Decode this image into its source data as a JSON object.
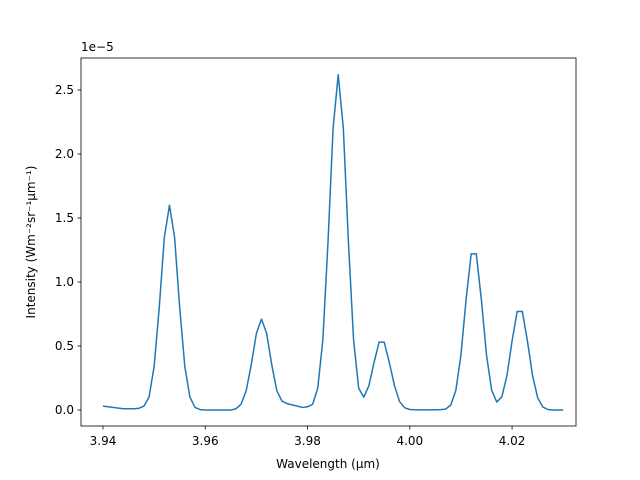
{
  "chart_data": {
    "type": "line",
    "xlabel": "Wavelength (μm)",
    "ylabel": "Intensity (Wm⁻²sr⁻¹μm⁻¹)",
    "y_offset_label": "1e−5",
    "color": "#1f77b4",
    "x": [
      3.94,
      3.941,
      3.942,
      3.943,
      3.944,
      3.945,
      3.946,
      3.947,
      3.948,
      3.949,
      3.95,
      3.951,
      3.952,
      3.953,
      3.954,
      3.955,
      3.956,
      3.957,
      3.958,
      3.959,
      3.96,
      3.961,
      3.962,
      3.963,
      3.964,
      3.965,
      3.966,
      3.967,
      3.968,
      3.969,
      3.97,
      3.971,
      3.972,
      3.973,
      3.974,
      3.975,
      3.976,
      3.977,
      3.978,
      3.979,
      3.98,
      3.981,
      3.982,
      3.983,
      3.984,
      3.985,
      3.986,
      3.987,
      3.988,
      3.989,
      3.99,
      3.991,
      3.992,
      3.993,
      3.994,
      3.995,
      3.996,
      3.997,
      3.998,
      3.999,
      4.0,
      4.001,
      4.002,
      4.003,
      4.004,
      4.005,
      4.006,
      4.007,
      4.008,
      4.009,
      4.01,
      4.011,
      4.012,
      4.013,
      4.014,
      4.015,
      4.016,
      4.017,
      4.018,
      4.019,
      4.02,
      4.021,
      4.022,
      4.023,
      4.024,
      4.025,
      4.026,
      4.027,
      4.028,
      4.029,
      4.03
    ],
    "values": [
      0.03,
      0.025,
      0.02,
      0.015,
      0.01,
      0.01,
      0.01,
      0.013,
      0.03,
      0.1,
      0.34,
      0.8,
      1.35,
      1.6,
      1.35,
      0.8,
      0.34,
      0.1,
      0.02,
      0.003,
      0,
      0,
      0,
      0,
      0,
      0,
      0.009,
      0.045,
      0.15,
      0.355,
      0.6,
      0.71,
      0.6,
      0.355,
      0.15,
      0.07,
      0.05,
      0.04,
      0.03,
      0.02,
      0.025,
      0.045,
      0.17,
      0.55,
      1.31,
      2.2,
      2.62,
      2.2,
      1.31,
      0.55,
      0.17,
      0.1,
      0.19,
      0.37,
      0.53,
      0.53,
      0.37,
      0.19,
      0.066,
      0.017,
      0.004,
      0.002,
      0.001,
      0.001,
      0.001,
      0.002,
      0.003,
      0.007,
      0.038,
      0.152,
      0.43,
      0.86,
      1.22,
      1.22,
      0.86,
      0.43,
      0.156,
      0.062,
      0.103,
      0.27,
      0.54,
      0.77,
      0.77,
      0.54,
      0.27,
      0.096,
      0.024,
      0.004,
      0,
      0,
      0
    ],
    "xlim": [
      3.9357,
      4.0325
    ],
    "ylim": [
      -0.125,
      2.75
    ],
    "xticks": [
      3.94,
      3.96,
      3.98,
      {
        "value": 4.0,
        "label": "4.00"
      },
      4.02
    ],
    "yticks": [
      {
        "value": 0,
        "label": "0.0"
      },
      0.5,
      {
        "value": 1,
        "label": "1.0"
      },
      1.5,
      {
        "value": 2,
        "label": "2.0"
      },
      2.5
    ]
  }
}
